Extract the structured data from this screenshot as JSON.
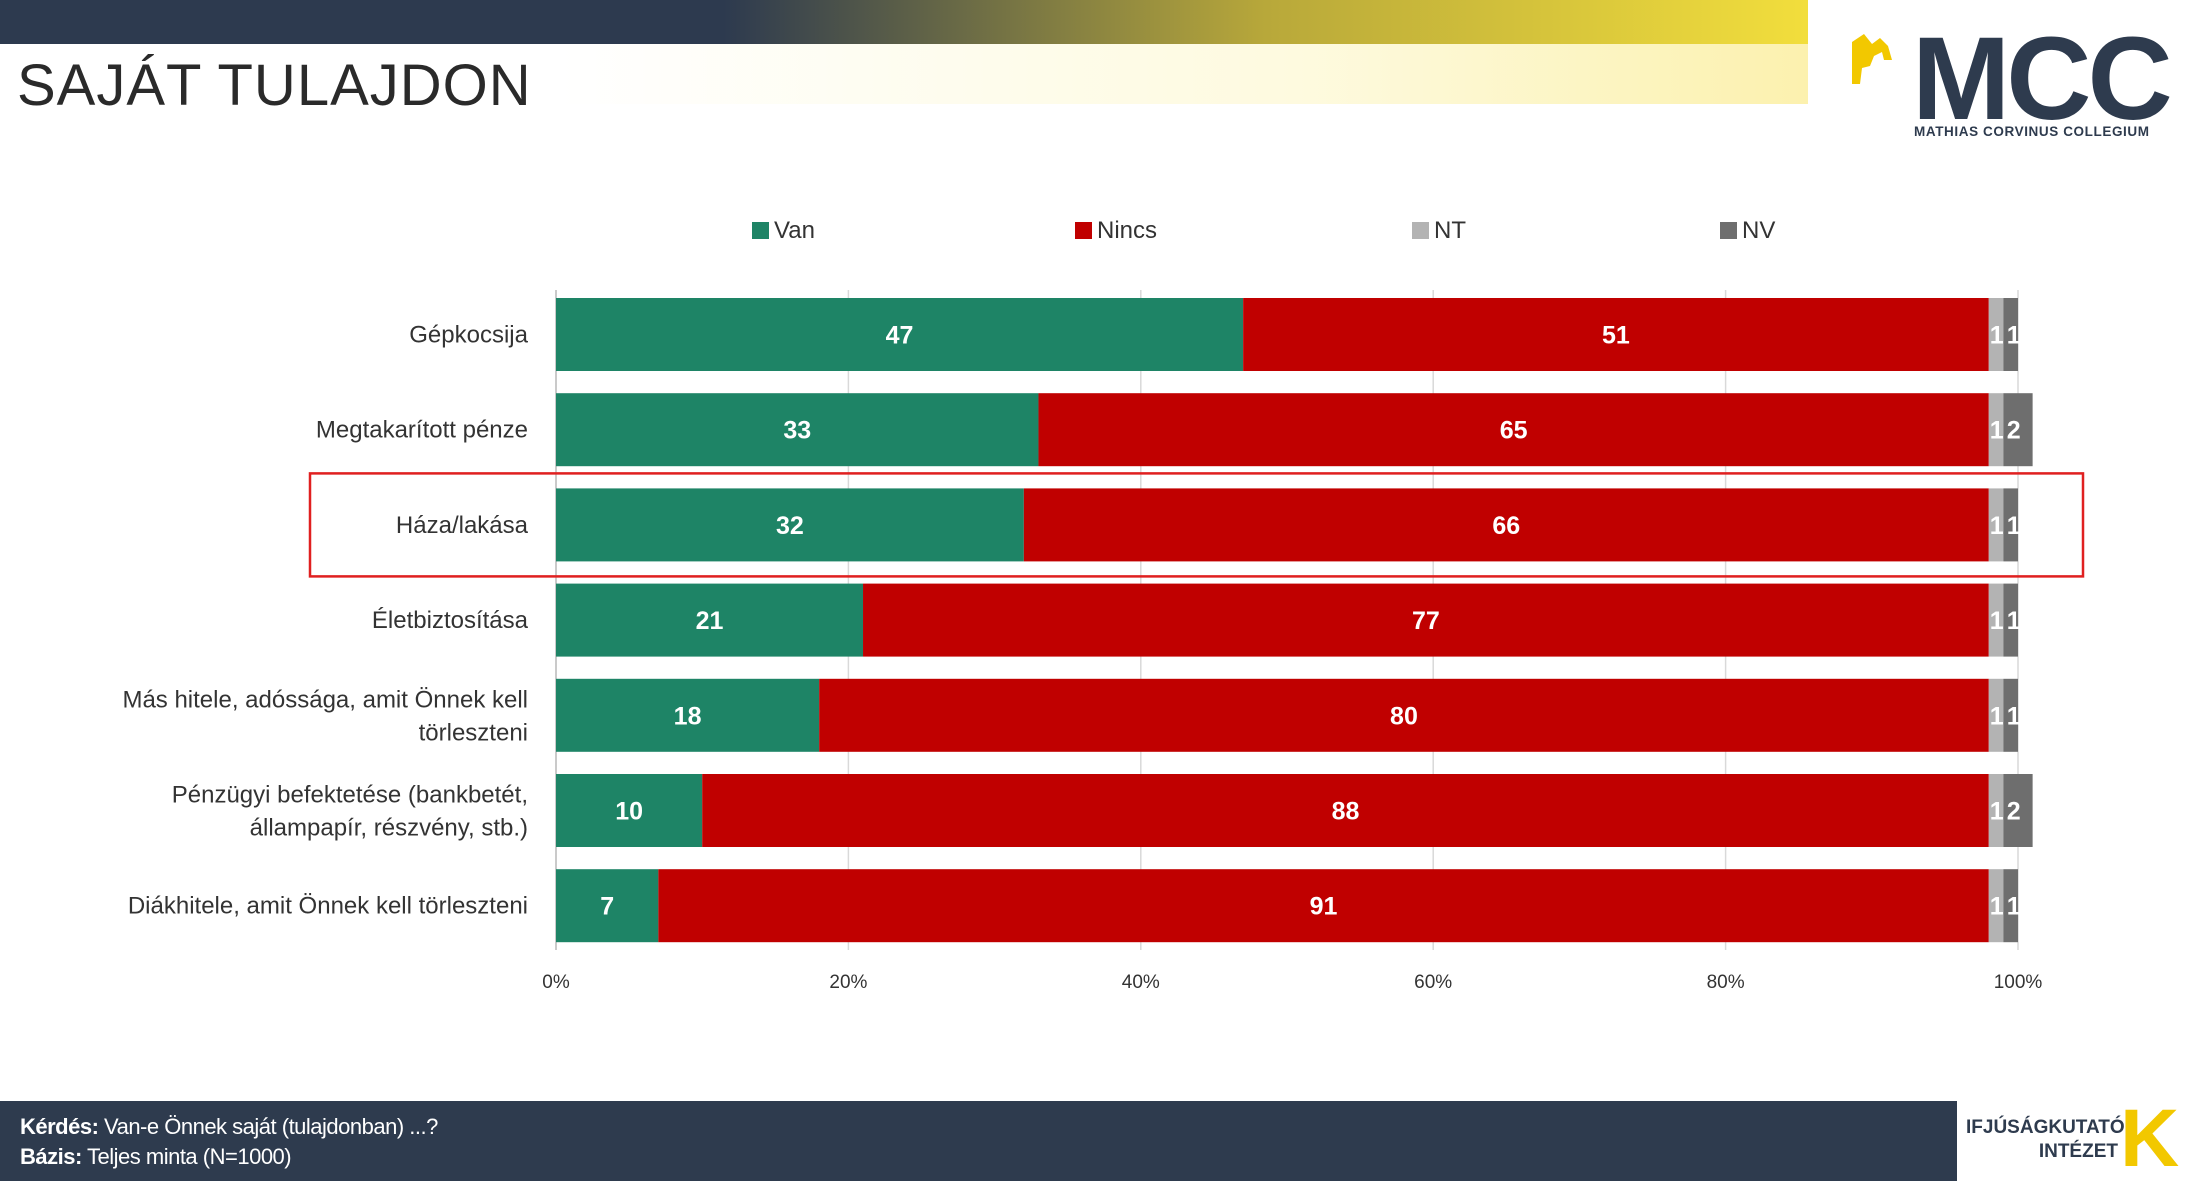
{
  "header": {
    "title": "SAJÁT TULAJDON",
    "logo_text": "MCC",
    "logo_subtitle": "MATHIAS CORVINUS COLLEGIUM"
  },
  "colors": {
    "van": "#1e8466",
    "nincs": "#c00000",
    "nt": "#b3b3b3",
    "nv": "#6e6e6e",
    "highlight": "#e02020",
    "navy": "#2e3b4e",
    "gold": "#f2c800"
  },
  "chart_data": {
    "type": "bar",
    "orientation": "horizontal",
    "stacked": "100%",
    "categories": [
      "Gépkocsija",
      "Megtakarított pénze",
      "Háza/lakása",
      "Életbiztosítása",
      "Más hitele, adóssága, amit Önnek kell törleszteni",
      "Pénzügyi befektetése (bankbetét, állampapír, részvény, stb.)",
      "Diákhitele, amit Önnek kell törleszteni"
    ],
    "series": [
      {
        "name": "Van",
        "values": [
          47,
          33,
          32,
          21,
          18,
          10,
          7
        ]
      },
      {
        "name": "Nincs",
        "values": [
          51,
          65,
          66,
          77,
          80,
          88,
          91
        ]
      },
      {
        "name": "NT",
        "values": [
          1,
          1,
          1,
          1,
          1,
          1,
          1
        ]
      },
      {
        "name": "NV",
        "values": [
          1,
          2,
          1,
          1,
          1,
          2,
          1
        ]
      }
    ],
    "x_ticks": [
      "0%",
      "20%",
      "40%",
      "60%",
      "80%",
      "100%"
    ],
    "xlim": [
      0,
      100
    ],
    "legend_position": "top",
    "grid": "vertical",
    "highlighted_category": "Háza/lakása"
  },
  "footer": {
    "question_label": "Kérdés:",
    "question_text": "Van-e Önnek saját (tulajdonban) ...?",
    "base_label": "Bázis:",
    "base_text": "Teljes minta (N=1000)"
  },
  "institute": {
    "line1": "IFJÚSÁGKUTATÓ",
    "line2": "INTÉZET",
    "letter": "K"
  }
}
